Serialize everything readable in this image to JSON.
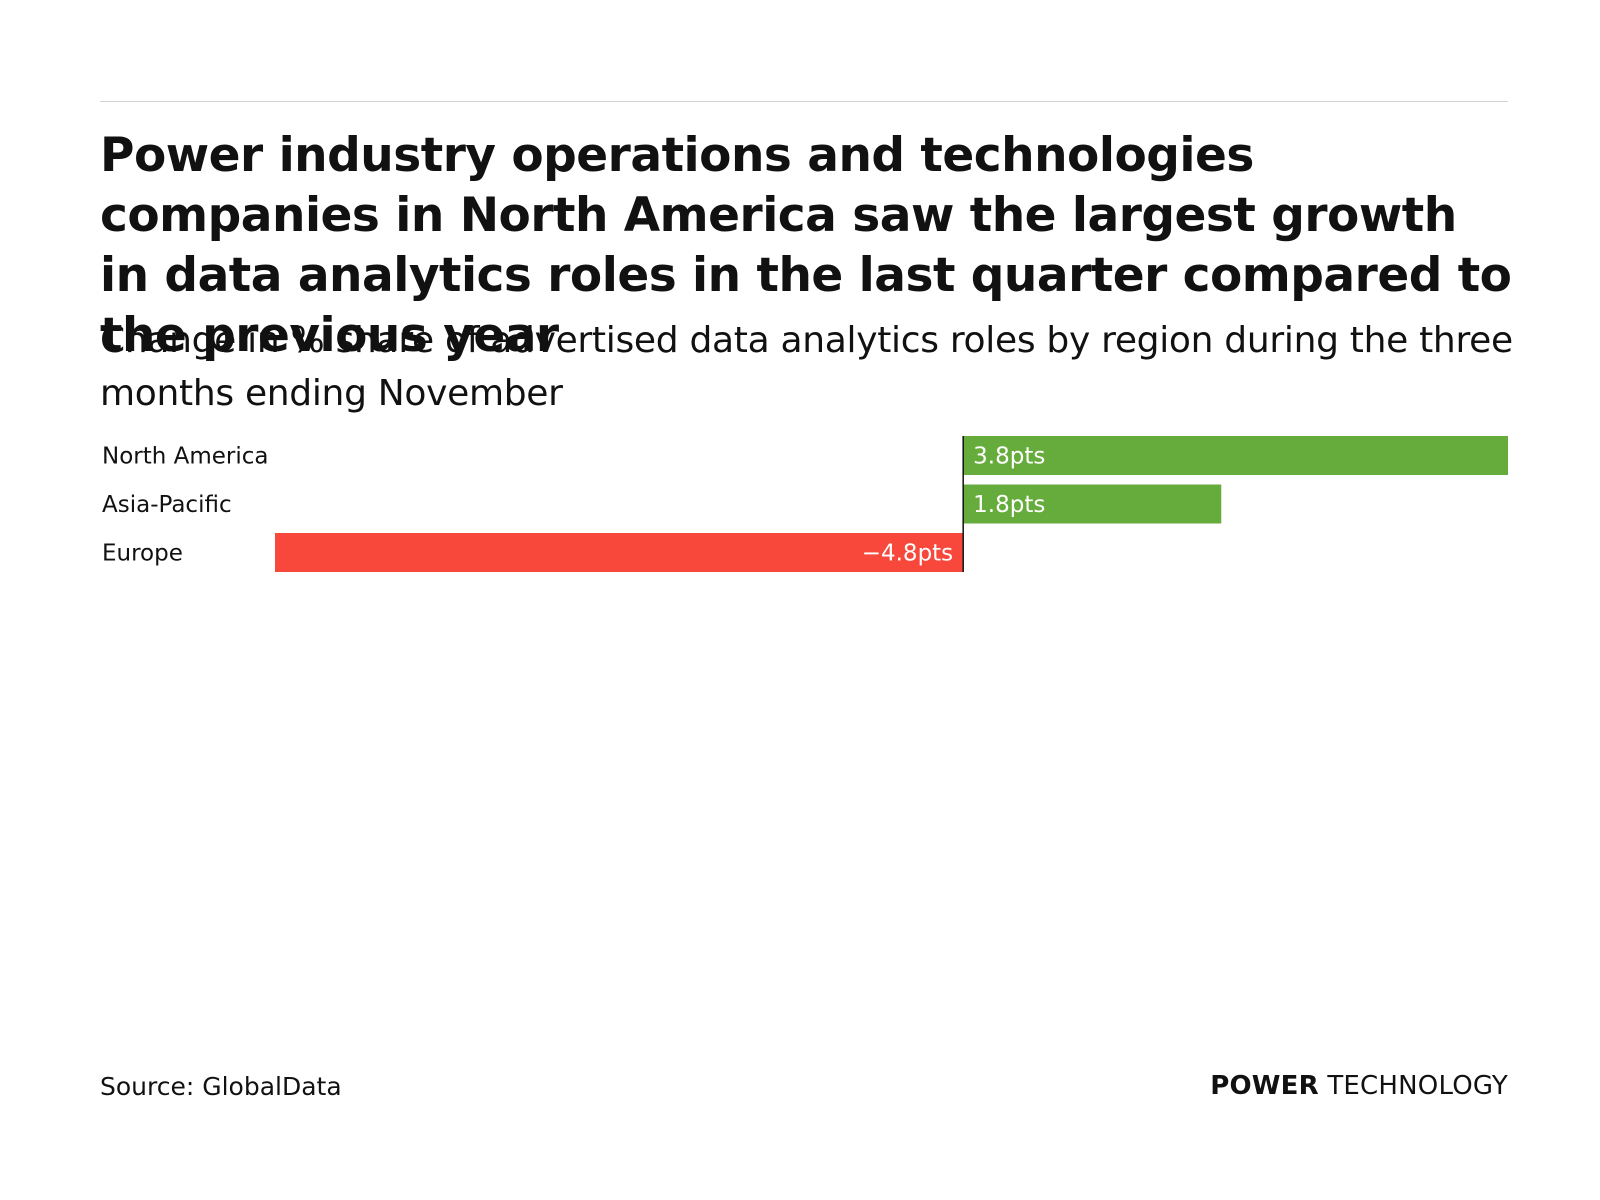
{
  "header": {
    "title": "Power industry operations and technologies companies in North America saw the largest growth in data analytics roles in the last quarter compared to the previous year",
    "subtitle": "Change in % share of advertised data analytics roles by region during the three months ending November"
  },
  "chart_data": {
    "type": "bar",
    "orientation": "horizontal",
    "title": "Power industry operations and technologies companies in North America saw the largest growth in data analytics roles in the last quarter compared to the previous year",
    "subtitle": "Change in % share of advertised data analytics roles by region during the three months ending November",
    "categories": [
      "North America",
      "Asia-Pacific",
      "Europe"
    ],
    "values": [
      3.8,
      1.8,
      -4.8
    ],
    "value_labels": [
      "3.8pts",
      "1.8pts",
      "−4.8pts"
    ],
    "unit": "pts",
    "xlim": [
      -4.8,
      3.8
    ],
    "xlabel": "",
    "ylabel": "",
    "grid": false,
    "colors": {
      "positive": "#66ac3c",
      "negative": "#f8473b",
      "baseline": "#111111"
    }
  },
  "footer": {
    "source": "Source: GlobalData",
    "brand_bold": "POWER",
    "brand_light": "TECHNOLOGY"
  }
}
